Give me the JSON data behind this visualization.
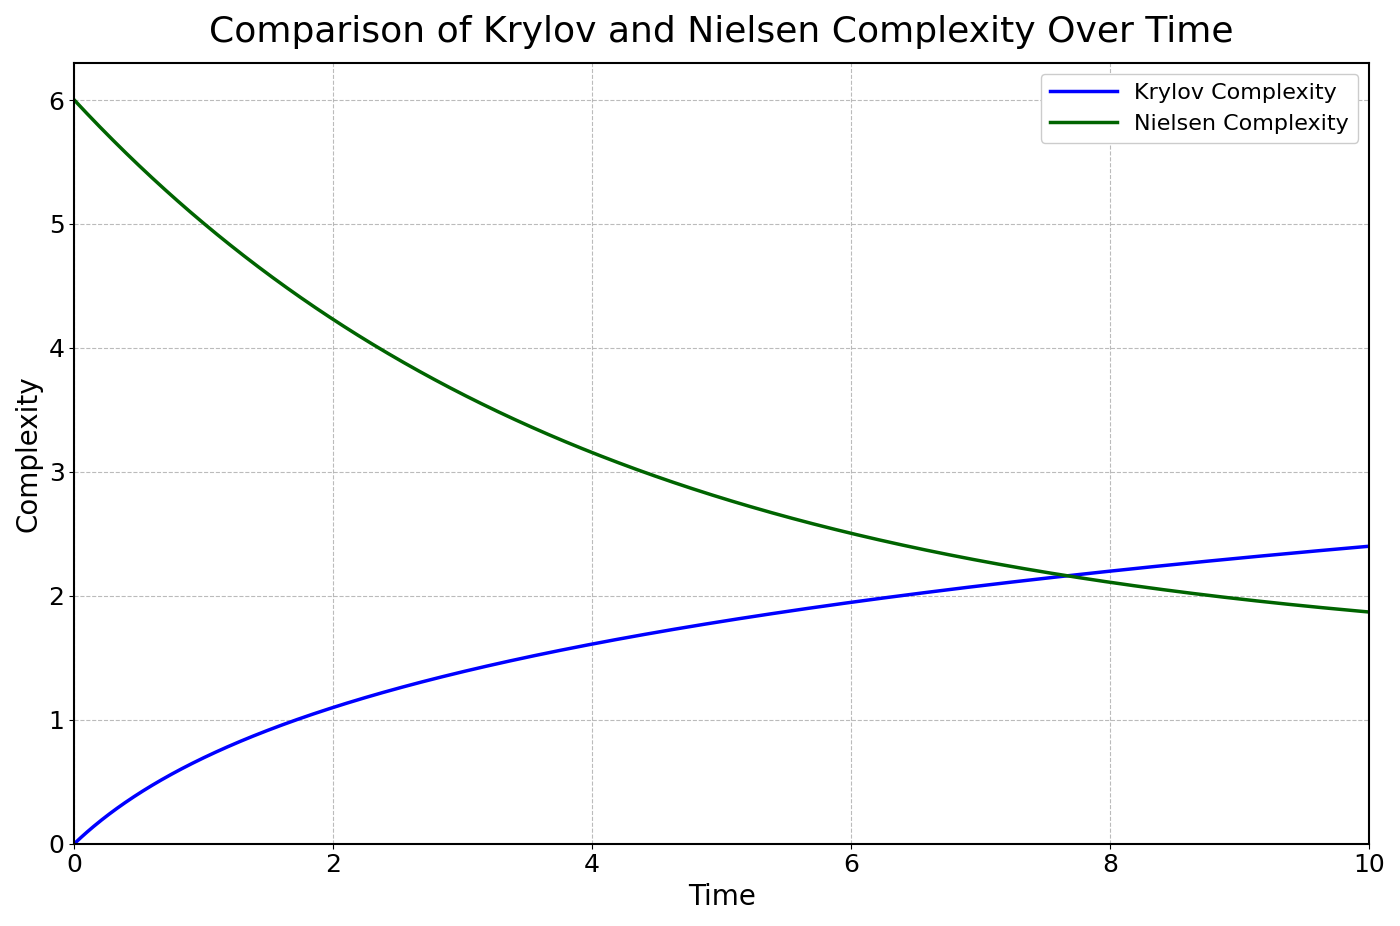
{
  "title": "Comparison of Krylov and Nielsen Complexity Over Time",
  "xlabel": "Time",
  "ylabel": "Complexity",
  "xlim": [
    0,
    10
  ],
  "ylim": [
    0,
    6.3
  ],
  "krylov_color": "#0000FF",
  "nielsen_color": "#006400",
  "krylov_label": "Krylov Complexity",
  "nielsen_label": "Nielsen Complexity",
  "line_width": 2.5,
  "title_fontsize": 26,
  "label_fontsize": 20,
  "tick_fontsize": 18,
  "legend_fontsize": 16,
  "nielsen_start": 6.0,
  "nielsen_decay": 0.13,
  "background_color": "#ffffff",
  "plot_area_color": "#ffffff",
  "grid_color": "#aaaaaa",
  "grid_style": "--",
  "grid_alpha": 0.8,
  "yticks": [
    0,
    1,
    2,
    3,
    4,
    5,
    6
  ],
  "xticks": [
    0,
    2,
    4,
    6,
    8,
    10
  ]
}
